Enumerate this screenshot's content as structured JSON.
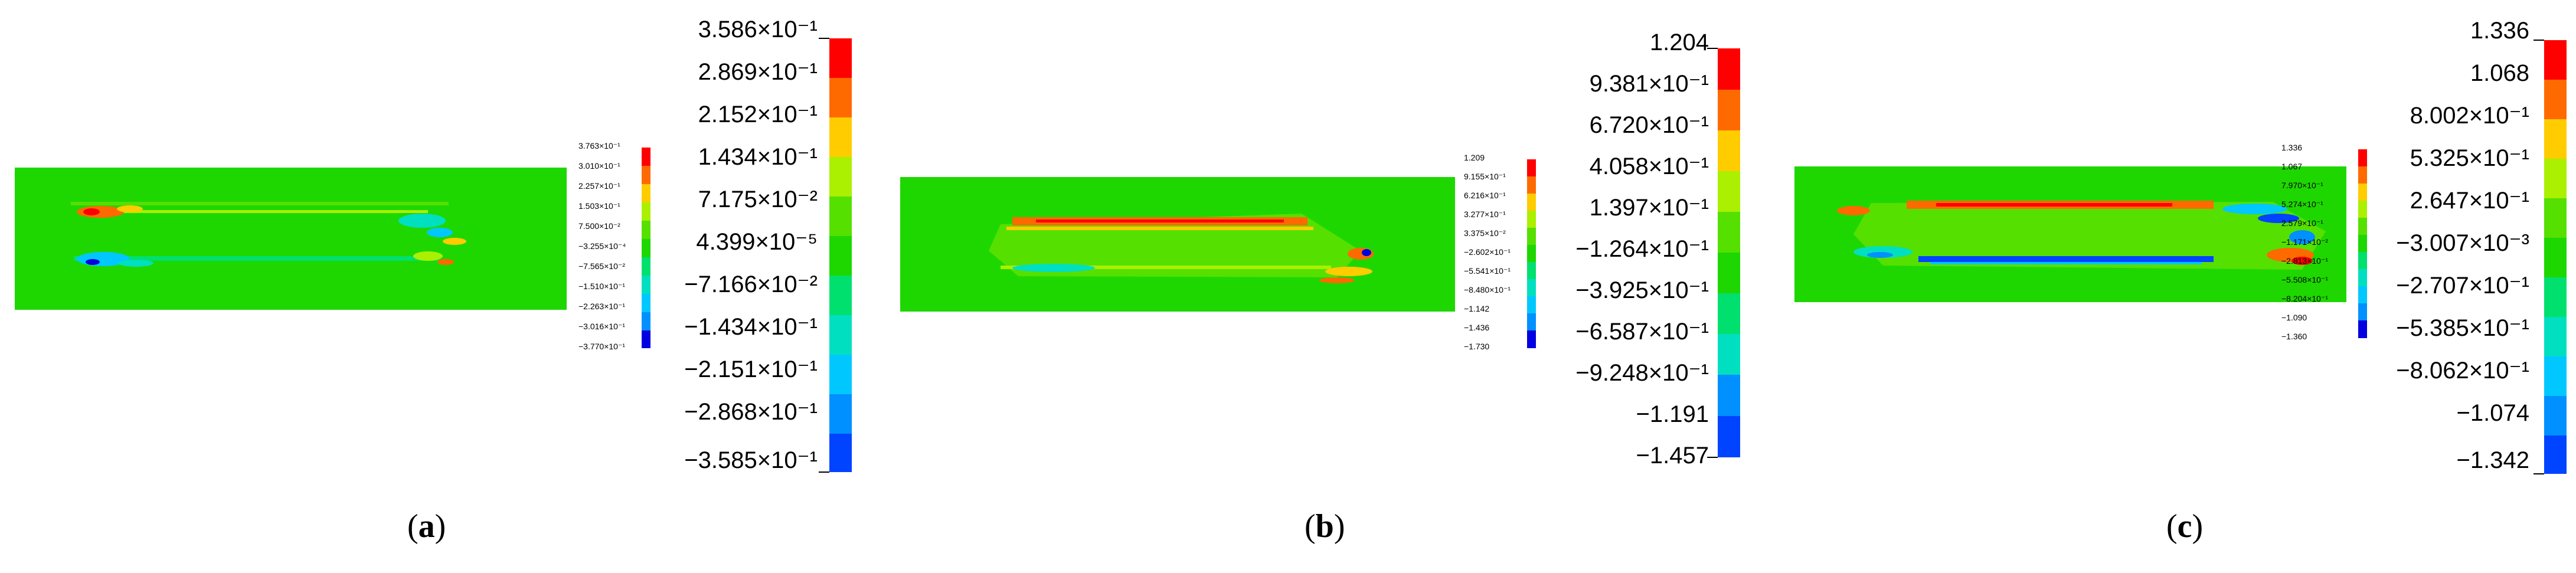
{
  "palette": [
    "#ff0000",
    "#ff6a00",
    "#ffcc00",
    "#aaf000",
    "#55e000",
    "#1ed700",
    "#00e06e",
    "#00e0c0",
    "#00c8ff",
    "#0090ff",
    "#0044ff",
    "#0000e0"
  ],
  "panels": [
    {
      "id": "a",
      "caption": "a",
      "small_legend": [
        "3.763×10⁻¹",
        "3.010×10⁻¹",
        "2.257×10⁻¹",
        "1.503×10⁻¹",
        "7.500×10⁻²",
        "−3.255×10⁻⁴",
        "−7.565×10⁻²",
        "−1.510×10⁻¹",
        "−2.263×10⁻¹",
        "−3.016×10⁻¹",
        "−3.770×10⁻¹"
      ],
      "large_legend": [
        "3.586×10⁻¹",
        "2.869×10⁻¹",
        "2.152×10⁻¹",
        "1.434×10⁻¹",
        "7.175×10⁻²",
        "4.399×10⁻⁵",
        "−7.166×10⁻²",
        "−1.434×10⁻¹",
        "−2.151×10⁻¹",
        "−2.868×10⁻¹",
        "−3.585×10⁻¹"
      ]
    },
    {
      "id": "b",
      "caption": "b",
      "small_legend": [
        "1.209",
        "9.155×10⁻¹",
        "6.216×10⁻¹",
        "3.277×10⁻¹",
        "3.375×10⁻²",
        "−2.602×10⁻¹",
        "−5.541×10⁻¹",
        "−8.480×10⁻¹",
        "−1.142",
        "−1.436",
        "−1.730"
      ],
      "large_legend": [
        "1.204",
        "9.381×10⁻¹",
        "6.720×10⁻¹",
        "4.058×10⁻¹",
        "1.397×10⁻¹",
        "−1.264×10⁻¹",
        "−3.925×10⁻¹",
        "−6.587×10⁻¹",
        "−9.248×10⁻¹",
        "−1.191",
        "−1.457"
      ]
    },
    {
      "id": "c",
      "caption": "c",
      "small_legend": [
        "1.336",
        "1.067",
        "7.970×10⁻¹",
        "5.274×10⁻¹",
        "2.579×10⁻¹",
        "−1.171×10⁻²",
        "−2.813×10⁻¹",
        "−5.508×10⁻¹",
        "−8.204×10⁻¹",
        "−1.090",
        "−1.360"
      ],
      "large_legend": [
        "1.336",
        "1.068",
        "8.002×10⁻¹",
        "5.325×10⁻¹",
        "2.647×10⁻¹",
        "−3.007×10⁻³",
        "−2.707×10⁻¹",
        "−5.385×10⁻¹",
        "−8.062×10⁻¹",
        "−1.074",
        "−1.342"
      ]
    }
  ]
}
